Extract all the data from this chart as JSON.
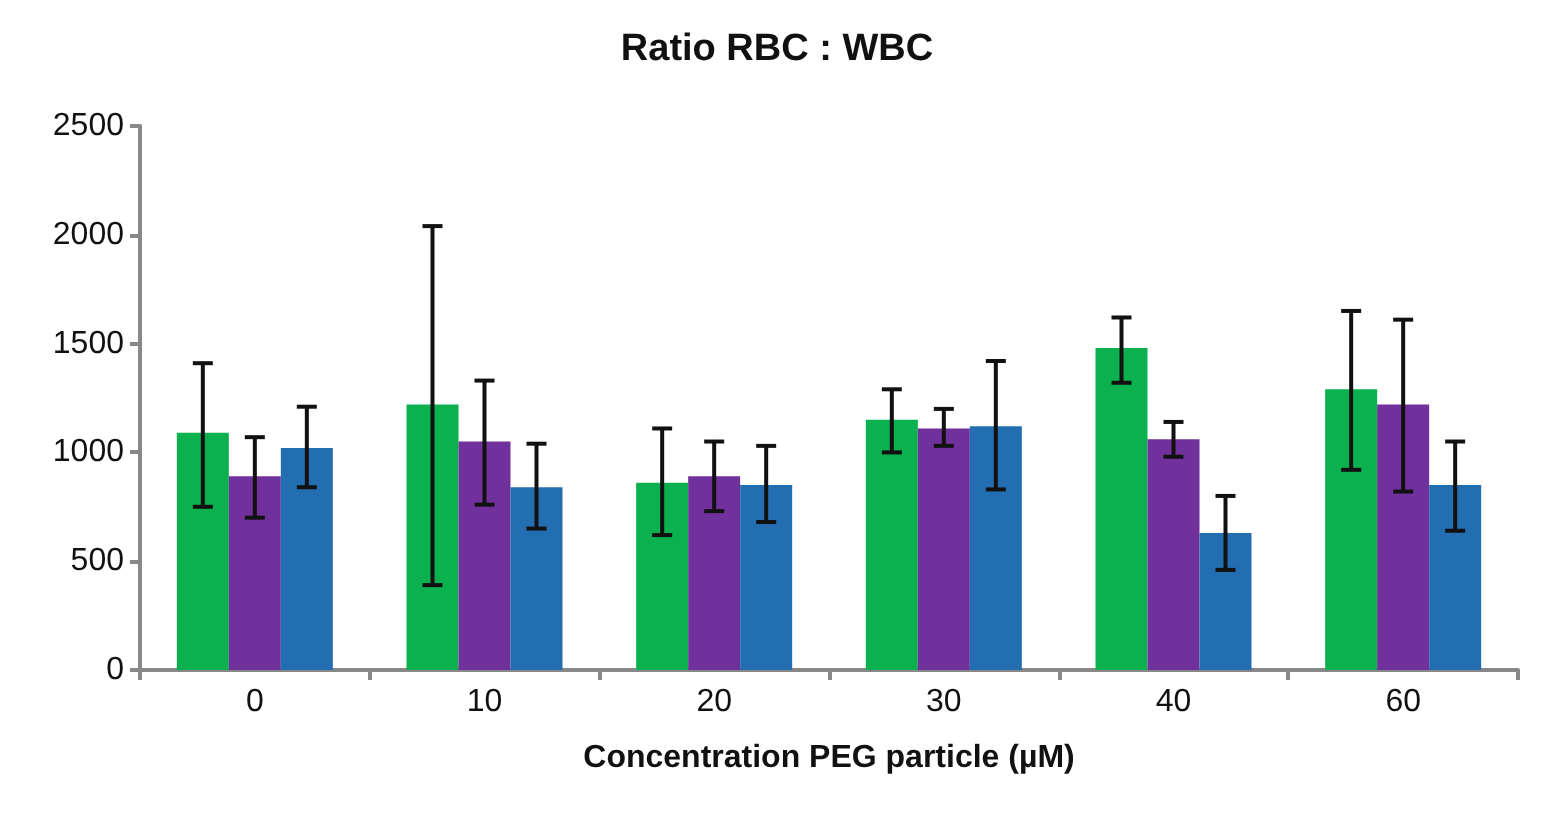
{
  "chart_data": {
    "type": "bar",
    "title": "Ratio RBC : WBC",
    "xlabel": "Concentration PEG particle (µM)",
    "categories": [
      "0",
      "10",
      "20",
      "30",
      "40",
      "60"
    ],
    "series": [
      {
        "color": "#0bb04f",
        "values": [
          1090,
          1220,
          860,
          1150,
          1480,
          1290
        ],
        "errors": [
          [
            750,
            1410
          ],
          [
            390,
            2040
          ],
          [
            620,
            1110
          ],
          [
            1000,
            1290
          ],
          [
            1320,
            1620
          ],
          [
            920,
            1650
          ]
        ]
      },
      {
        "color": "#71319c",
        "values": [
          890,
          1050,
          890,
          1110,
          1060,
          1220
        ],
        "errors": [
          [
            700,
            1070
          ],
          [
            760,
            1330
          ],
          [
            730,
            1050
          ],
          [
            1030,
            1200
          ],
          [
            980,
            1140
          ],
          [
            820,
            1610
          ]
        ]
      },
      {
        "color": "#236eb1",
        "values": [
          1020,
          840,
          850,
          1120,
          630,
          850
        ],
        "errors": [
          [
            840,
            1210
          ],
          [
            650,
            1040
          ],
          [
            680,
            1030
          ],
          [
            830,
            1420
          ],
          [
            460,
            800
          ],
          [
            640,
            1050
          ]
        ]
      }
    ],
    "ylim": [
      0,
      2500
    ],
    "yticks": [
      0,
      500,
      1000,
      1500,
      2000,
      2500
    ],
    "grid": false
  }
}
